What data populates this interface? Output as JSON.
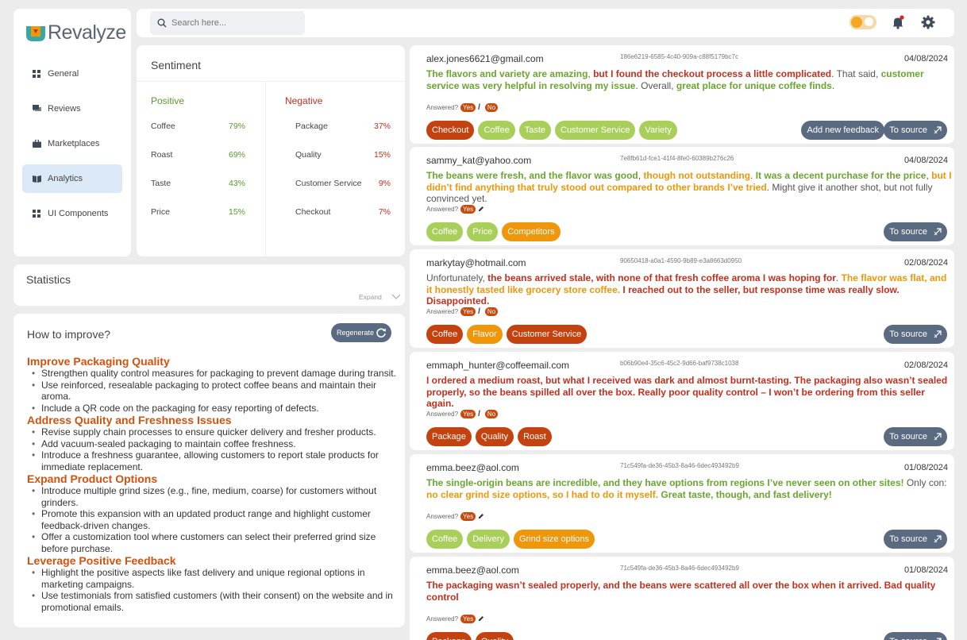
{
  "app": {
    "logo_text": "Revalyze"
  },
  "sidebar": {
    "items": [
      {
        "label": "General",
        "icon": "grid-icon"
      },
      {
        "label": "Reviews",
        "icon": "chat-icon"
      },
      {
        "label": "Marketplaces",
        "icon": "briefcase-icon"
      },
      {
        "label": "Analytics",
        "icon": "book-icon",
        "active": true
      },
      {
        "label": "UI Components",
        "icon": "grid-icon"
      }
    ]
  },
  "search": {
    "placeholder": "Search here..."
  },
  "sentiment": {
    "title": "Sentiment",
    "positive_label": "Positive",
    "negative_label": "Negative",
    "positive": [
      {
        "label": "Coffee",
        "value": "79%"
      },
      {
        "label": "Roast",
        "value": "69%"
      },
      {
        "label": "Taste",
        "value": "43%"
      },
      {
        "label": "Price",
        "value": "15%"
      }
    ],
    "negative": [
      {
        "label": "Package",
        "value": "37%"
      },
      {
        "label": "Quality",
        "value": "15%"
      },
      {
        "label": "Customer Service",
        "value": "9%"
      },
      {
        "label": "Checkout",
        "value": "7%"
      }
    ]
  },
  "statistics": {
    "title": "Statistics",
    "expand_label": "Expand"
  },
  "improve": {
    "title": "How to improve?",
    "regenerate_label": "Regenerate",
    "sections": [
      {
        "heading": "Improve Packaging Quality",
        "items": [
          "Strengthen quality control measures for packaging to prevent damage during transit.",
          "Use reinforced, resealable packaging to protect coffee beans and maintain their aroma.",
          "Include a QR code on the packaging for easy reporting of defects."
        ]
      },
      {
        "heading": "Address Quality and Freshness Issues",
        "items": [
          "Revise supply chain processes to ensure quicker delivery and fresher products.",
          "Add vacuum-sealed packaging to maintain coffee freshness.",
          "Introduce a freshness guarantee, allowing customers to report stale products for immediate replacement."
        ]
      },
      {
        "heading": "Expand Product Options",
        "items": [
          "Introduce multiple grind sizes (e.g., fine, medium, coarse) for customers without grinders.",
          "Promote this expansion with an updated product range and highlight customer feedback-driven changes.",
          "Offer a customization tool where customers can select their preferred grind size before purchase."
        ]
      },
      {
        "heading": "Leverage Positive Feedback",
        "items": [
          "Highlight the positive aspects like fast delivery and unique regional options in marketing campaigns.",
          "Use testimonials from satisfied customers (with their consent) on the website and in promotional emails."
        ]
      }
    ]
  },
  "reviews": [
    {
      "email": "alex.jones6621@gmail.com",
      "id": "186e6219-6585-4c40-909a-c88f5179bc7c",
      "date": "04/08/2024",
      "segments": [
        {
          "t": "The flavors and variety are amazing",
          "c": "g"
        },
        {
          "t": ", ",
          "c": ""
        },
        {
          "t": "but I found the checkout process a little complicated",
          "c": "rd"
        },
        {
          "t": ". That said, ",
          "c": ""
        },
        {
          "t": "customer service was very helpful in resolving my issue",
          "c": "g"
        },
        {
          "t": ". Overall, ",
          "c": ""
        },
        {
          "t": "great place for unique coffee finds",
          "c": "g"
        },
        {
          "t": ".",
          "c": ""
        }
      ],
      "answered_label": "Answered?",
      "answered": [
        "Yes",
        "No"
      ],
      "tags": [
        {
          "label": "Checkout",
          "c": "red"
        },
        {
          "label": "Coffee",
          "c": "green"
        },
        {
          "label": "Taste",
          "c": "green"
        },
        {
          "label": "Customer Service",
          "c": "green"
        },
        {
          "label": "Variety",
          "c": "green"
        }
      ],
      "feedback_label": "Add new feedback",
      "source_label": "To source"
    },
    {
      "email": "sammy_kat@yahoo.com",
      "id": "7e8fb61d-fce1-41f4-8fe0-60389b276c26",
      "date": "04/08/2024",
      "segments": [
        {
          "t": "The beans were fresh, and the flavor was good",
          "c": "g"
        },
        {
          "t": ", ",
          "c": ""
        },
        {
          "t": "though not outstanding",
          "c": "o"
        },
        {
          "t": ". ",
          "c": ""
        },
        {
          "t": "It was a decent purchase for the price",
          "c": "g"
        },
        {
          "t": ", ",
          "c": ""
        },
        {
          "t": "but I didn’t find anything that truly stood out compared to other brands I’ve tried",
          "c": "o"
        },
        {
          "t": ". Might give it another shot, but not fully convinced yet.",
          "c": ""
        }
      ],
      "answered_label": "Answered?",
      "answered": [
        "Yes"
      ],
      "tags": [
        {
          "label": "Coffee",
          "c": "green"
        },
        {
          "label": "Price",
          "c": "green"
        },
        {
          "label": "Competitors",
          "c": "orange"
        }
      ],
      "source_label": "To source"
    },
    {
      "email": "markytay@hotmail.com",
      "id": "90650418-a0a1-4590-9b89-e3a8663d0950",
      "date": "02/08/2024",
      "segments": [
        {
          "t": "Unfortunately, ",
          "c": ""
        },
        {
          "t": "the beans arrived stale",
          "c": "rd"
        },
        {
          "t": ", ",
          "c": "rd"
        },
        {
          "t": "with none of that fresh coffee aroma I was hoping for",
          "c": "rd"
        },
        {
          "t": ". ",
          "c": ""
        },
        {
          "t": "The flavor was flat, and it honestly tasted like grocery store coffee.",
          "c": "o"
        },
        {
          "t": " ",
          "c": ""
        },
        {
          "t": "I reached out to the seller, but response time was really slow. Disappointed.",
          "c": "rd"
        }
      ],
      "answered_label": "Answered?",
      "answered": [
        "Yes",
        "No"
      ],
      "tags": [
        {
          "label": "Coffee",
          "c": "red"
        },
        {
          "label": "Flavor",
          "c": "orange"
        },
        {
          "label": "Customer Service",
          "c": "red"
        }
      ],
      "source_label": "To source"
    },
    {
      "email": "emmaph_hunter@coffeemail.com",
      "id": "b06b90e4-35c6-45c2-9d66-baf9738c1038",
      "date": "02/08/2024",
      "segments": [
        {
          "t": "I ordered a medium roast, but what I received was dark and almost burnt-tasting. The packaging also wasn’t sealed properly, so the beans spilled all over the box. Really poor quality control – I won’t be ordering from this seller again.",
          "c": "rd"
        }
      ],
      "answered_label": "Answered?",
      "answered": [
        "Yes",
        "No"
      ],
      "tags": [
        {
          "label": "Package",
          "c": "red"
        },
        {
          "label": "Quality",
          "c": "red"
        },
        {
          "label": "Roast",
          "c": "red"
        }
      ],
      "source_label": "To source"
    },
    {
      "email": "emma.beez@aol.com",
      "id": "71c549fa-de36-45b3-8a46-6dec493492b9",
      "date": "01/08/2024",
      "segments": [
        {
          "t": "The single-origin beans are incredible, and they have options from regions I’ve never seen on other sites!",
          "c": "g"
        },
        {
          "t": " Only con: ",
          "c": ""
        },
        {
          "t": "no clear grind size options, so I had to do it myself.",
          "c": "o"
        },
        {
          "t": " ",
          "c": ""
        },
        {
          "t": "Great taste, though, and fast delivery!",
          "c": "g"
        }
      ],
      "answered_label": "Answered?",
      "answered": [
        "Yes"
      ],
      "tags": [
        {
          "label": "Coffee",
          "c": "green"
        },
        {
          "label": "Delivery",
          "c": "green"
        },
        {
          "label": "Grind size options",
          "c": "orange"
        }
      ],
      "source_label": "To source"
    },
    {
      "email": "emma.beez@aol.com",
      "id": "71c549fa-de36-45b3-8a46-6dec493492b9",
      "date": "01/08/2024",
      "segments": [
        {
          "t": " The packaging wasn’t sealed properly, and the beans were scattered all over the box when it arrived. Bad quality control",
          "c": "rd"
        }
      ],
      "answered_label": "Answered?",
      "answered": [
        "Yes"
      ],
      "tags": [
        {
          "label": "Package",
          "c": "red"
        },
        {
          "label": "Quality",
          "c": "red"
        }
      ],
      "source_label": "To source"
    }
  ]
}
